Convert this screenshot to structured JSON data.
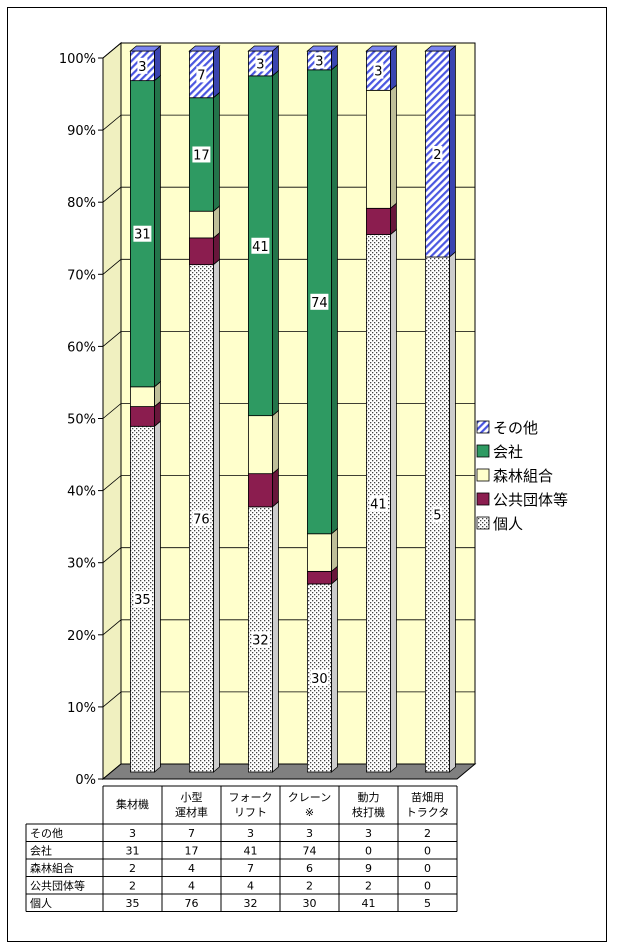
{
  "chart_data": {
    "type": "bar",
    "stacked": "percent",
    "three_d": true,
    "categories": [
      [
        "集材機"
      ],
      [
        "小型",
        "運材車"
      ],
      [
        "フォーク",
        "リフト"
      ],
      [
        "クレーン",
        "※"
      ],
      [
        "動力",
        "枝打機"
      ],
      [
        "苗畑用",
        "トラクタ"
      ]
    ],
    "series": [
      {
        "name": "個人",
        "values": [
          35,
          76,
          32,
          30,
          41,
          5
        ],
        "color": "#f2f2f2",
        "pattern": "dots"
      },
      {
        "name": "公共団体等",
        "values": [
          2,
          4,
          4,
          2,
          2,
          0
        ],
        "color": "#8b1d4f",
        "pattern": "solid"
      },
      {
        "name": "森林組合",
        "values": [
          2,
          4,
          7,
          6,
          9,
          0
        ],
        "color": "#ffffcc",
        "pattern": "solid"
      },
      {
        "name": "会社",
        "values": [
          31,
          17,
          41,
          74,
          0,
          0
        ],
        "color": "#2e9a62",
        "pattern": "solid"
      },
      {
        "name": "その他",
        "values": [
          3,
          7,
          3,
          3,
          3,
          2
        ],
        "color": "#4a56e0",
        "pattern": "hatch"
      }
    ],
    "legend_order": [
      "その他",
      "会社",
      "森林組合",
      "公共団体等",
      "個人"
    ],
    "legend_placement": "right",
    "data_labels": {
      "その他": [
        true,
        true,
        true,
        true,
        true,
        true
      ],
      "会社": [
        true,
        true,
        true,
        true,
        false,
        false
      ],
      "個人": [
        true,
        true,
        true,
        true,
        true,
        true
      ]
    },
    "y_ticks": [
      "0%",
      "10%",
      "20%",
      "30%",
      "40%",
      "50%",
      "60%",
      "70%",
      "80%",
      "90%",
      "100%"
    ],
    "ylim": [
      0,
      100
    ],
    "grid": true,
    "wall_color": "#ffffcc",
    "floor_color": "#808080",
    "data_table": {
      "rows": [
        {
          "label": "その他",
          "series": "その他"
        },
        {
          "label": "会社",
          "series": "会社"
        },
        {
          "label": "森林組合",
          "series": "森林組合"
        },
        {
          "label": "公共団体等",
          "series": "公共団体等"
        },
        {
          "label": "個人",
          "series": "個人"
        }
      ]
    }
  }
}
